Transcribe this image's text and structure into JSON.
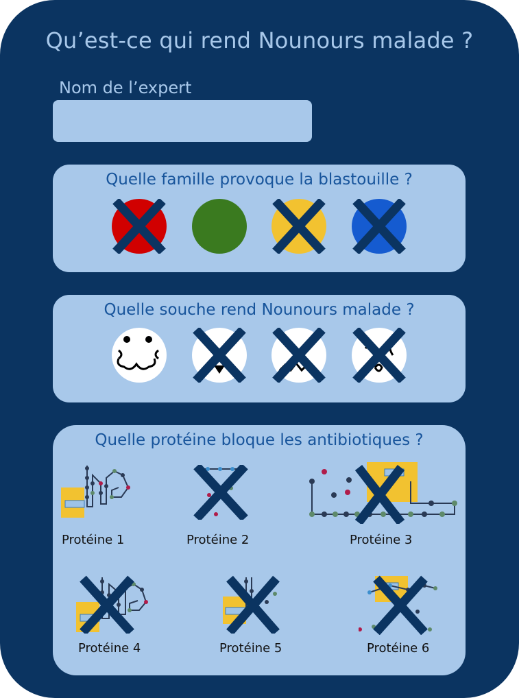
{
  "title": "Qu’est-ce qui rend Nounours malade ?",
  "expert": {
    "label": "Nom de l’expert",
    "value": "",
    "placeholder": ""
  },
  "q1": {
    "question": "Quelle famille provoque la blastouille ?",
    "options": [
      {
        "name": "red-circle",
        "color": "#d10000",
        "crossed": true
      },
      {
        "name": "green-circle",
        "color": "#3a7a1f",
        "crossed": false
      },
      {
        "name": "yellow-circle",
        "color": "#f2c230",
        "crossed": true
      },
      {
        "name": "blue-circle",
        "color": "#155bd0",
        "crossed": true
      }
    ]
  },
  "q2": {
    "question": "Quelle souche rend Nounours malade ?",
    "options": [
      {
        "name": "germ-face-1",
        "crossed": false
      },
      {
        "name": "germ-face-2",
        "crossed": true
      },
      {
        "name": "germ-face-3",
        "crossed": true
      },
      {
        "name": "germ-face-4",
        "crossed": true
      }
    ]
  },
  "q3": {
    "question": "Quelle protéine bloque les antibiotiques ?",
    "proteins": [
      {
        "label": "Protéine 1",
        "crossed": false
      },
      {
        "label": "Protéine 2",
        "crossed": true
      },
      {
        "label": "Protéine 3",
        "crossed": true
      },
      {
        "label": "Protéine 4",
        "crossed": true
      },
      {
        "label": "Protéine 5",
        "crossed": true
      },
      {
        "label": "Protéine 6",
        "crossed": true
      }
    ]
  },
  "colors": {
    "background": "#0b3461",
    "panel": "#a8c8ea",
    "question": "#17549b",
    "cross": "#0b3461"
  }
}
